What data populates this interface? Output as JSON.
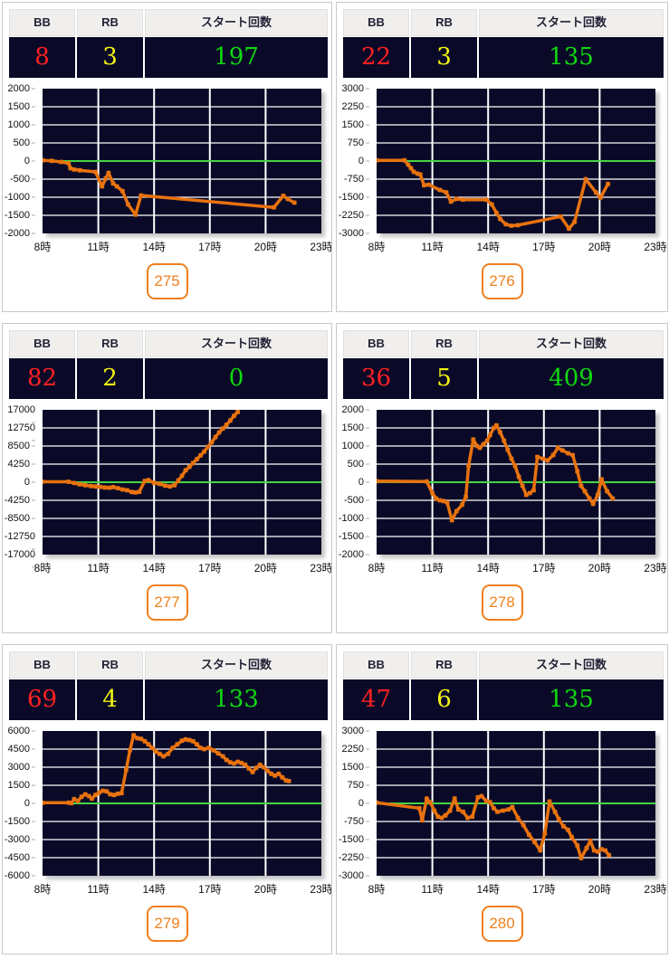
{
  "table_header": {
    "bb": "BB",
    "rb": "RB",
    "start": "スタート回数"
  },
  "machines": [
    {
      "id": "275",
      "bb": "8",
      "rb": "3",
      "start": "197"
    },
    {
      "id": "276",
      "bb": "22",
      "rb": "3",
      "start": "135"
    },
    {
      "id": "277",
      "bb": "82",
      "rb": "2",
      "start": "0"
    },
    {
      "id": "278",
      "bb": "36",
      "rb": "5",
      "start": "409"
    },
    {
      "id": "279",
      "bb": "69",
      "rb": "4",
      "start": "133"
    },
    {
      "id": "280",
      "bb": "47",
      "rb": "6",
      "start": "135"
    }
  ],
  "chart_data": [
    {
      "type": "line",
      "machine": "275",
      "title": "",
      "xlabel": "",
      "ylabel": "",
      "x_range": [
        8,
        23
      ],
      "ylim": [
        -2000,
        2000
      ],
      "ytick_step": 500,
      "grid": true,
      "x_labels": [
        "8時",
        "11時",
        "14時",
        "17時",
        "20時",
        "23時"
      ],
      "label_hours": [
        8,
        11,
        14,
        17,
        20,
        23
      ],
      "grid_hours": [
        11,
        14,
        17,
        20
      ],
      "ytick_labels": [
        "2000",
        "1500",
        "1000",
        "500",
        "0",
        "-500",
        "-1000",
        "-1500",
        "-2000"
      ],
      "x": [
        8.0,
        8.5,
        9.0,
        9.4,
        9.5,
        9.7,
        10.0,
        10.85,
        11.2,
        11.4,
        11.55,
        11.8,
        12.0,
        12.3,
        12.6,
        13.0,
        13.3,
        20.45,
        20.95,
        21.2,
        21.55
      ],
      "y": [
        20,
        5,
        -25,
        -60,
        -200,
        -235,
        -255,
        -300,
        -700,
        -480,
        -330,
        -620,
        -700,
        -830,
        -1200,
        -1480,
        -950,
        -1280,
        -960,
        -1050,
        -1150
      ]
    },
    {
      "type": "line",
      "machine": "276",
      "title": "",
      "xlabel": "",
      "ylabel": "",
      "x_range": [
        8,
        23
      ],
      "ylim": [
        -3000,
        3000
      ],
      "ytick_step": 750,
      "grid": true,
      "x_labels": [
        "8時",
        "11時",
        "14時",
        "17時",
        "20時",
        "23時"
      ],
      "label_hours": [
        8,
        11,
        14,
        17,
        20,
        23
      ],
      "grid_hours": [
        11,
        14,
        17,
        20
      ],
      "ytick_labels": [
        "3000",
        "2250",
        "1500",
        "750",
        "0",
        "-750",
        "-1500",
        "-2250",
        "-3000"
      ],
      "x": [
        8.0,
        9.5,
        9.7,
        9.85,
        10.0,
        10.2,
        10.35,
        10.55,
        10.8,
        11.4,
        11.75,
        12.0,
        12.3,
        12.65,
        13.9,
        14.2,
        14.45,
        14.65,
        14.95,
        15.25,
        15.6,
        17.9,
        18.35,
        18.65,
        19.25,
        19.8,
        20.05,
        20.45
      ],
      "y": [
        30,
        30,
        -150,
        -300,
        -450,
        -520,
        -560,
        -1000,
        -980,
        -1200,
        -1300,
        -1680,
        -1570,
        -1600,
        -1600,
        -1800,
        -2150,
        -2400,
        -2620,
        -2680,
        -2660,
        -2300,
        -2800,
        -2520,
        -750,
        -1300,
        -1520,
        -950
      ]
    },
    {
      "type": "line",
      "machine": "277",
      "title": "",
      "xlabel": "",
      "ylabel": "",
      "x_range": [
        8,
        23
      ],
      "ylim": [
        -17000,
        17000
      ],
      "ytick_step": 4250,
      "grid": true,
      "x_labels": [
        "8時",
        "11時",
        "14時",
        "17時",
        "20時",
        "23時"
      ],
      "label_hours": [
        8,
        11,
        14,
        17,
        20,
        23
      ],
      "grid_hours": [
        11,
        14,
        17,
        20
      ],
      "ytick_labels": [
        "17000",
        "12750",
        "8500",
        "4250",
        "0",
        "-4250",
        "-8500",
        "-12750",
        "-17000"
      ],
      "x": [
        8.0,
        9.4,
        9.7,
        10.0,
        10.3,
        10.6,
        10.85,
        11.1,
        11.35,
        11.6,
        11.8,
        12.05,
        12.3,
        12.55,
        12.8,
        13.0,
        13.2,
        13.5,
        13.7,
        14.0,
        14.3,
        14.6,
        14.85,
        15.1,
        15.3,
        15.5,
        15.7,
        15.9,
        16.1,
        16.3,
        16.5,
        16.7,
        16.9,
        17.1,
        17.3,
        17.5,
        17.7,
        17.9,
        18.1,
        18.3,
        18.5
      ],
      "y": [
        100,
        100,
        -200,
        -500,
        -700,
        -900,
        -1000,
        -1100,
        -1250,
        -1300,
        -1150,
        -1400,
        -1700,
        -1900,
        -2300,
        -2400,
        -2250,
        300,
        500,
        -150,
        -400,
        -800,
        -1000,
        -700,
        400,
        1500,
        2800,
        3600,
        4500,
        5400,
        6300,
        7200,
        8300,
        9400,
        10600,
        11700,
        12600,
        13500,
        14500,
        15600,
        16500
      ]
    },
    {
      "type": "line",
      "machine": "278",
      "title": "",
      "xlabel": "",
      "ylabel": "",
      "x_range": [
        8,
        23
      ],
      "ylim": [
        -2000,
        2000
      ],
      "ytick_step": 500,
      "grid": true,
      "x_labels": [
        "8時",
        "11時",
        "14時",
        "17時",
        "20時",
        "23時"
      ],
      "label_hours": [
        8,
        11,
        14,
        17,
        20,
        23
      ],
      "grid_hours": [
        11,
        14,
        17,
        20
      ],
      "ytick_labels": [
        "2000",
        "1500",
        "1000",
        "500",
        "0",
        "-500",
        "-1000",
        "-1500",
        "-2000"
      ],
      "x": [
        8.0,
        10.7,
        11.0,
        11.2,
        11.4,
        11.6,
        11.8,
        12.05,
        12.3,
        12.6,
        12.8,
        12.95,
        13.2,
        13.4,
        13.55,
        13.75,
        13.95,
        14.1,
        14.3,
        14.45,
        14.65,
        14.85,
        15.05,
        15.25,
        15.45,
        15.65,
        15.85,
        16.05,
        16.25,
        16.45,
        16.65,
        16.95,
        17.2,
        17.5,
        17.75,
        18.0,
        18.3,
        18.55,
        18.8,
        19.0,
        19.2,
        19.45,
        19.65,
        19.9,
        20.1,
        20.4,
        20.7
      ],
      "y": [
        30,
        20,
        -300,
        -450,
        -500,
        -520,
        -560,
        -1050,
        -800,
        -620,
        -400,
        450,
        1180,
        1000,
        950,
        1050,
        1150,
        1300,
        1500,
        1570,
        1380,
        1150,
        900,
        650,
        450,
        150,
        -100,
        -350,
        -300,
        -220,
        700,
        650,
        600,
        750,
        950,
        880,
        800,
        750,
        300,
        -100,
        -250,
        -450,
        -600,
        -350,
        80,
        -250,
        -450
      ]
    },
    {
      "type": "line",
      "machine": "279",
      "title": "",
      "xlabel": "",
      "ylabel": "",
      "x_range": [
        8,
        23
      ],
      "ylim": [
        -6000,
        6000
      ],
      "ytick_step": 1500,
      "grid": true,
      "x_labels": [
        "8時",
        "11時",
        "14時",
        "17時",
        "20時",
        "23時"
      ],
      "label_hours": [
        8,
        11,
        14,
        17,
        20,
        23
      ],
      "grid_hours": [
        11,
        14,
        17,
        20
      ],
      "ytick_labels": [
        "6000",
        "4500",
        "3000",
        "1500",
        "0",
        "-1500",
        "-3000",
        "-4500",
        "-6000"
      ],
      "x": [
        8.0,
        9.4,
        9.55,
        9.7,
        9.9,
        10.1,
        10.3,
        10.5,
        10.65,
        10.85,
        11.05,
        11.25,
        11.45,
        11.65,
        11.85,
        12.05,
        12.25,
        12.5,
        12.7,
        12.9,
        13.1,
        13.3,
        13.5,
        13.7,
        13.9,
        14.1,
        14.3,
        14.5,
        14.75,
        15.0,
        15.25,
        15.5,
        15.7,
        15.9,
        16.1,
        16.3,
        16.5,
        16.7,
        16.95,
        17.2,
        17.45,
        17.7,
        17.9,
        18.1,
        18.3,
        18.5,
        18.7,
        18.9,
        19.1,
        19.3,
        19.5,
        19.7,
        19.9,
        20.1,
        20.3,
        20.5,
        20.7,
        20.9,
        21.1,
        21.25
      ],
      "y": [
        50,
        60,
        20,
        350,
        200,
        550,
        750,
        600,
        400,
        700,
        900,
        1050,
        1000,
        750,
        700,
        800,
        850,
        2800,
        4400,
        5650,
        5400,
        5350,
        5150,
        4900,
        4600,
        4300,
        4100,
        3900,
        4100,
        4600,
        4900,
        5200,
        5300,
        5250,
        5150,
        4900,
        4600,
        4500,
        4600,
        4400,
        4150,
        3900,
        3600,
        3400,
        3300,
        3450,
        3350,
        3200,
        2900,
        2600,
        2950,
        3200,
        3000,
        2700,
        2450,
        2300,
        2450,
        2150,
        1900,
        1850
      ]
    },
    {
      "type": "line",
      "machine": "280",
      "title": "",
      "xlabel": "",
      "ylabel": "",
      "x_range": [
        8,
        23
      ],
      "ylim": [
        -3000,
        3000
      ],
      "ytick_step": 750,
      "grid": true,
      "x_labels": [
        "8時",
        "11時",
        "14時",
        "17時",
        "20時",
        "23時"
      ],
      "label_hours": [
        8,
        11,
        14,
        17,
        20,
        23
      ],
      "grid_hours": [
        11,
        14,
        17,
        20
      ],
      "ytick_labels": [
        "3000",
        "2250",
        "1500",
        "750",
        "0",
        "-750",
        "-1500",
        "-2250",
        "-3000"
      ],
      "x": [
        8.0,
        10.3,
        10.45,
        10.7,
        10.9,
        11.1,
        11.3,
        11.5,
        11.7,
        11.95,
        12.2,
        12.4,
        12.65,
        12.9,
        13.15,
        13.45,
        13.65,
        13.9,
        14.1,
        14.3,
        14.5,
        14.8,
        15.1,
        15.3,
        15.6,
        15.9,
        16.2,
        16.5,
        16.8,
        17.05,
        17.3,
        17.6,
        17.8,
        18.05,
        18.3,
        18.5,
        18.8,
        19.0,
        19.3,
        19.5,
        19.7,
        19.9,
        20.1,
        20.3,
        20.5
      ],
      "y": [
        30,
        -200,
        -700,
        200,
        30,
        -300,
        -550,
        -600,
        -500,
        -300,
        200,
        -250,
        -350,
        -600,
        -550,
        250,
        300,
        100,
        50,
        -200,
        -350,
        -300,
        -250,
        -150,
        -600,
        -900,
        -1300,
        -1600,
        -1950,
        -1250,
        80,
        -350,
        -650,
        -950,
        -1100,
        -1400,
        -1750,
        -2270,
        -1850,
        -1550,
        -1950,
        -2000,
        -1900,
        -1950,
        -2150
      ]
    }
  ],
  "colors": {
    "bb_value": "#ff2121",
    "rb_value": "#f2f211",
    "start_value": "#0fd80f",
    "line": "#e8720e",
    "zero_line": "#46d446",
    "plot_bg": "#0a0a28",
    "grid": "#ffffff",
    "badge": "#f0801e",
    "header_bg": "#f1efed",
    "header_text": "#222236",
    "panel_border": "#c8c8c8"
  }
}
